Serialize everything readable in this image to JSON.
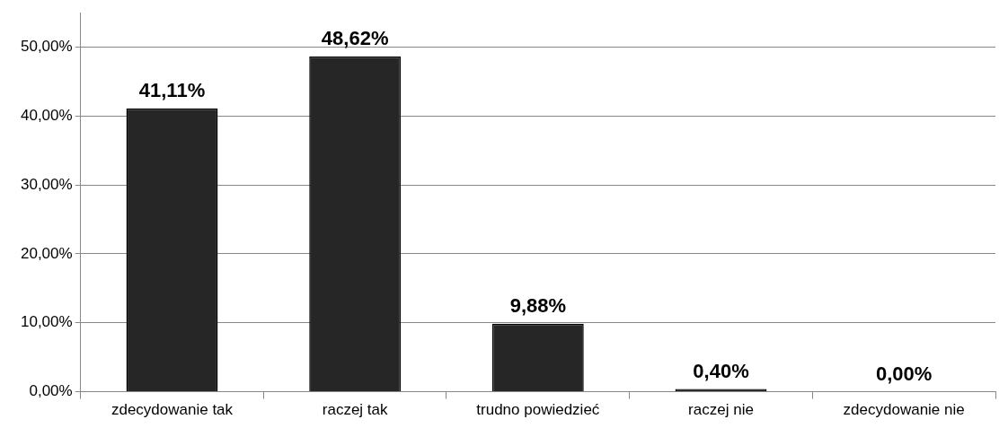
{
  "chart_data": {
    "type": "bar",
    "categories": [
      "zdecydowanie tak",
      "raczej tak",
      "trudno powiedzieć",
      "raczej nie",
      "zdecydowanie nie"
    ],
    "values": [
      41.11,
      48.62,
      9.88,
      0.4,
      0.0
    ],
    "value_labels": [
      "41,11%",
      "48,62%",
      "9,88%",
      "0,40%",
      "0,00%"
    ],
    "color": "#262626",
    "ylim": [
      0,
      55
    ],
    "yticks": [
      {
        "value": 0,
        "label": "0,00%"
      },
      {
        "value": 10,
        "label": "10,00%"
      },
      {
        "value": 20,
        "label": "20,00%"
      },
      {
        "value": 30,
        "label": "30,00%"
      },
      {
        "value": 40,
        "label": "40,00%"
      },
      {
        "value": 50,
        "label": "50,00%"
      }
    ],
    "grid": "y",
    "legend": false
  }
}
